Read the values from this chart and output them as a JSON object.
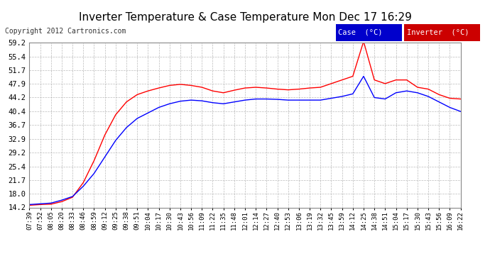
{
  "title": "Inverter Temperature & Case Temperature Mon Dec 17 16:29",
  "copyright": "Copyright 2012 Cartronics.com",
  "background_color": "#ffffff",
  "plot_bg_color": "#ffffff",
  "grid_color": "#aaaaaa",
  "yticks": [
    14.2,
    18.0,
    21.7,
    25.4,
    29.2,
    32.9,
    36.7,
    40.4,
    44.2,
    47.9,
    51.7,
    55.4,
    59.2
  ],
  "ylim": [
    14.2,
    59.2
  ],
  "legend_case_label": "Case  (°C)",
  "legend_inverter_label": "Inverter  (°C)",
  "case_color": "#0000ff",
  "inverter_color": "#ff0000",
  "xtick_labels": [
    "07:39",
    "07:52",
    "08:05",
    "08:20",
    "08:33",
    "08:46",
    "08:59",
    "09:12",
    "09:25",
    "09:38",
    "09:51",
    "10:04",
    "10:17",
    "10:30",
    "10:43",
    "10:56",
    "11:09",
    "11:22",
    "11:35",
    "11:48",
    "12:01",
    "12:14",
    "12:27",
    "12:40",
    "12:53",
    "13:06",
    "13:19",
    "13:32",
    "13:45",
    "13:59",
    "14:12",
    "14:25",
    "14:38",
    "14:51",
    "15:04",
    "15:17",
    "15:30",
    "15:43",
    "15:56",
    "16:09",
    "16:22"
  ],
  "case_data": [
    15.0,
    15.2,
    15.4,
    16.2,
    17.2,
    20.0,
    23.5,
    28.0,
    32.5,
    36.0,
    38.5,
    40.0,
    41.5,
    42.5,
    43.2,
    43.5,
    43.3,
    42.8,
    42.5,
    43.0,
    43.5,
    43.8,
    43.8,
    43.7,
    43.5,
    43.5,
    43.5,
    43.5,
    44.0,
    44.5,
    45.2,
    50.0,
    44.2,
    43.8,
    45.5,
    46.0,
    45.5,
    44.5,
    43.0,
    41.5,
    40.4
  ],
  "inverter_data": [
    14.8,
    15.0,
    15.1,
    15.8,
    17.0,
    21.0,
    27.0,
    34.0,
    39.5,
    43.0,
    45.0,
    46.0,
    46.8,
    47.5,
    47.8,
    47.5,
    47.0,
    46.0,
    45.5,
    46.2,
    46.8,
    47.0,
    46.8,
    46.5,
    46.3,
    46.5,
    46.8,
    47.0,
    48.0,
    49.0,
    50.0,
    59.5,
    49.0,
    48.0,
    49.0,
    49.0,
    47.0,
    46.5,
    45.0,
    44.0,
    43.8
  ],
  "title_fontsize": 11,
  "tick_fontsize": 7.5,
  "xtick_fontsize": 6.5,
  "copyright_fontsize": 7
}
